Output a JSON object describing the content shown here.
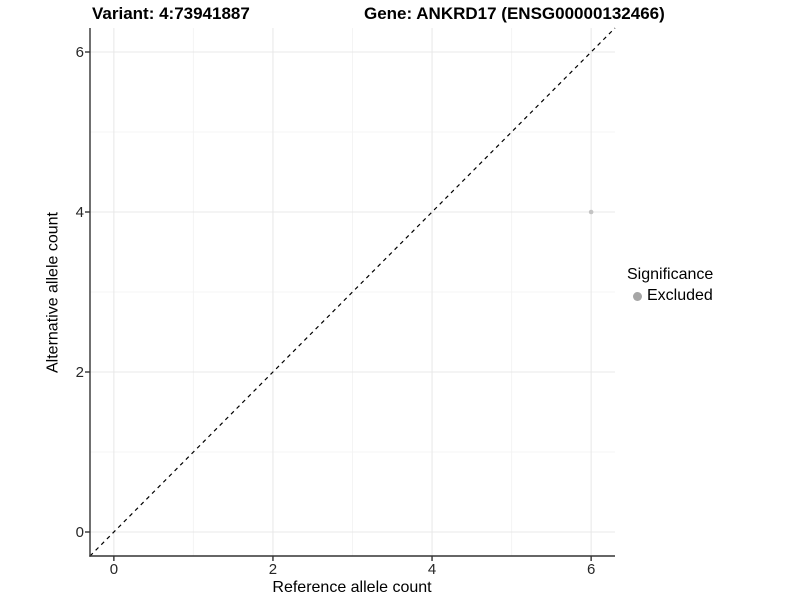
{
  "header": {
    "variant_title": "Variant: 4:73941887",
    "gene_title": "Gene: ANKRD17 (ENSG00000132466)"
  },
  "chart_data": {
    "type": "scatter",
    "titles": {
      "variant": "Variant: 4:73941887",
      "gene": "Gene: ANKRD17 (ENSG00000132466)"
    },
    "xlabel": "Reference allele count",
    "ylabel": "Alternative allele count",
    "xlim": [
      -0.3,
      6.3
    ],
    "ylim": [
      -0.3,
      6.3
    ],
    "x_ticks": [
      0,
      2,
      4,
      6
    ],
    "y_ticks": [
      0,
      2,
      4,
      6
    ],
    "x_minor_ticks": [
      1,
      3,
      5
    ],
    "y_minor_ticks": [
      1,
      3,
      5
    ],
    "grid": true,
    "identity_line": {
      "style": "dashed",
      "from": [
        -0.3,
        -0.3
      ],
      "to": [
        6.3,
        6.3
      ],
      "color": "#000000"
    },
    "series": [
      {
        "name": "Excluded",
        "color": "#c4c4c4",
        "points": [
          {
            "x": 6,
            "y": 4
          }
        ]
      }
    ],
    "legend": {
      "title": "Significance",
      "position": "right",
      "entries": [
        {
          "label": "Excluded",
          "color": "#a6a6a6"
        }
      ]
    },
    "colors": {
      "grid_major": "#e8e8e8",
      "grid_minor": "#f4f4f4",
      "axis_line": "#333333",
      "tick_mark": "#333333",
      "tick_label": "#262626",
      "point": "#c4c4c4"
    }
  }
}
